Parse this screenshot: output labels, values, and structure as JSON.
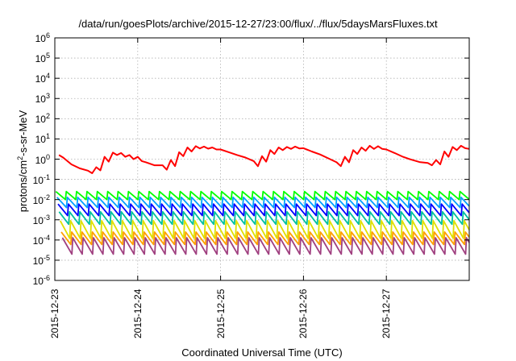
{
  "chart_data": {
    "type": "line",
    "title": "/data/run/goesPlots/archive/2015-12-27/23:00/flux/../flux/5daysMarsFluxes.txt",
    "xlabel": "Coordinated Universal Time (UTC)",
    "ylabel_base": "protons/cm",
    "ylabel_exp": "2",
    "ylabel_rest": "-s-sr-MeV",
    "yscale": "log",
    "ylim": [
      1e-06,
      1000000.0
    ],
    "yticks": [
      {
        "base": "10",
        "exp": "-6"
      },
      {
        "base": "10",
        "exp": "-5"
      },
      {
        "base": "10",
        "exp": "-4"
      },
      {
        "base": "10",
        "exp": "-3"
      },
      {
        "base": "10",
        "exp": "-2"
      },
      {
        "base": "10",
        "exp": "-1"
      },
      {
        "base": "10",
        "exp": "0"
      },
      {
        "base": "10",
        "exp": "1"
      },
      {
        "base": "10",
        "exp": "2"
      },
      {
        "base": "10",
        "exp": "3"
      },
      {
        "base": "10",
        "exp": "4"
      },
      {
        "base": "10",
        "exp": "5"
      },
      {
        "base": "10",
        "exp": "6"
      }
    ],
    "xlim_days": [
      0,
      5
    ],
    "xticks": [
      "2015-12-23",
      "2015-12-24",
      "2015-12-25",
      "2015-12-26",
      "2015-12-27"
    ],
    "grid": true,
    "sawtooth_period_days": 0.125,
    "series": [
      {
        "color": "#ff0000",
        "style": "smooth",
        "points": [
          [
            0.05,
            1.6
          ],
          [
            0.1,
            1.2
          ],
          [
            0.2,
            0.55
          ],
          [
            0.3,
            0.35
          ],
          [
            0.4,
            0.27
          ],
          [
            0.45,
            0.2
          ],
          [
            0.5,
            0.4
          ],
          [
            0.55,
            0.28
          ],
          [
            0.6,
            1.3
          ],
          [
            0.65,
            0.75
          ],
          [
            0.7,
            2.1
          ],
          [
            0.75,
            1.6
          ],
          [
            0.8,
            2.0
          ],
          [
            0.85,
            1.3
          ],
          [
            0.9,
            1.6
          ],
          [
            0.95,
            1.0
          ],
          [
            1.0,
            1.3
          ],
          [
            1.05,
            0.8
          ],
          [
            1.1,
            0.7
          ],
          [
            1.2,
            0.5
          ],
          [
            1.3,
            0.5
          ],
          [
            1.35,
            0.3
          ],
          [
            1.4,
            0.9
          ],
          [
            1.45,
            0.45
          ],
          [
            1.5,
            2.2
          ],
          [
            1.55,
            1.4
          ],
          [
            1.6,
            3.8
          ],
          [
            1.65,
            2.4
          ],
          [
            1.7,
            4.4
          ],
          [
            1.75,
            3.4
          ],
          [
            1.8,
            4.2
          ],
          [
            1.85,
            3.3
          ],
          [
            1.9,
            3.8
          ],
          [
            1.95,
            3.0
          ],
          [
            2.0,
            3.0
          ],
          [
            2.1,
            2.2
          ],
          [
            2.2,
            1.6
          ],
          [
            2.3,
            1.2
          ],
          [
            2.4,
            0.8
          ],
          [
            2.45,
            0.45
          ],
          [
            2.5,
            1.4
          ],
          [
            2.55,
            0.75
          ],
          [
            2.6,
            2.8
          ],
          [
            2.65,
            1.8
          ],
          [
            2.7,
            3.8
          ],
          [
            2.75,
            2.8
          ],
          [
            2.8,
            4.0
          ],
          [
            2.85,
            3.2
          ],
          [
            2.9,
            4.2
          ],
          [
            2.95,
            3.4
          ],
          [
            3.0,
            3.5
          ],
          [
            3.1,
            2.4
          ],
          [
            3.2,
            1.7
          ],
          [
            3.3,
            1.1
          ],
          [
            3.4,
            0.7
          ],
          [
            3.45,
            0.45
          ],
          [
            3.5,
            1.3
          ],
          [
            3.55,
            0.7
          ],
          [
            3.6,
            2.8
          ],
          [
            3.65,
            1.8
          ],
          [
            3.7,
            3.8
          ],
          [
            3.75,
            2.6
          ],
          [
            3.8,
            4.6
          ],
          [
            3.85,
            3.2
          ],
          [
            3.9,
            4.4
          ],
          [
            3.95,
            3.2
          ],
          [
            4.0,
            3.0
          ],
          [
            4.1,
            2.0
          ],
          [
            4.2,
            1.3
          ],
          [
            4.3,
            0.95
          ],
          [
            4.4,
            0.72
          ],
          [
            4.5,
            0.65
          ],
          [
            4.55,
            0.5
          ],
          [
            4.6,
            0.9
          ],
          [
            4.65,
            0.55
          ],
          [
            4.7,
            2.4
          ],
          [
            4.75,
            1.3
          ],
          [
            4.8,
            4.0
          ],
          [
            4.85,
            2.8
          ],
          [
            4.9,
            4.6
          ],
          [
            4.95,
            3.5
          ],
          [
            5.0,
            3.2
          ]
        ]
      },
      {
        "color": "#00ff00",
        "style": "sawtooth",
        "peak": 0.025,
        "trough": 0.01
      },
      {
        "color": "#00a0ff",
        "style": "sawtooth",
        "peak": 0.013,
        "trough": 0.004
      },
      {
        "color": "#0000ff",
        "style": "sawtooth",
        "peak": 0.006,
        "trough": 0.0016
      },
      {
        "color": "#00c0a0",
        "style": "sawtooth",
        "peak": 0.0025,
        "trough": 0.0006
      },
      {
        "color": "#e0e000",
        "style": "sawtooth",
        "peak": 0.0009,
        "trough": 0.00012
      },
      {
        "color": "#ffa000",
        "style": "sawtooth",
        "peak": 0.00025,
        "trough": 6e-05
      },
      {
        "color": "#a04080",
        "style": "sawtooth",
        "peak": 0.00013,
        "trough": 2e-05
      }
    ]
  }
}
